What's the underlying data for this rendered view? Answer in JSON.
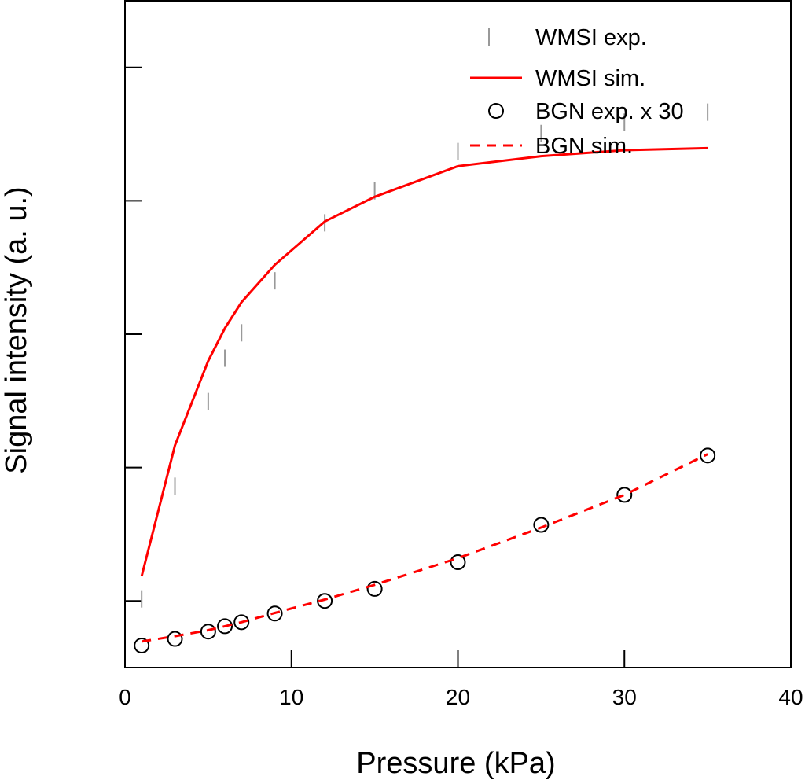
{
  "chart_data": {
    "type": "line",
    "title": "",
    "xlabel": "Pressure (kPa)",
    "ylabel": "Signal intensity (a. u.)",
    "xlim": [
      0,
      40
    ],
    "ylim": [
      0,
      1
    ],
    "x_ticks": [
      0,
      10,
      20,
      30,
      40
    ],
    "x_tick_labels": [
      "0",
      "10",
      "20",
      "30",
      "40"
    ],
    "y_ticks": [
      0.1,
      0.3,
      0.5,
      0.7,
      0.9
    ],
    "legend_position": "top-right",
    "grid": false,
    "colors": {
      "sim": "#ff0000",
      "bgn_exp": "#000000",
      "wmsi_exp": "#999999"
    },
    "series": [
      {
        "name": "WMSI exp.",
        "style": "vertical-tick",
        "x": [
          1,
          3,
          5,
          6,
          7,
          9,
          12,
          15,
          20,
          25,
          30,
          35
        ],
        "values": [
          0.103,
          0.272,
          0.399,
          0.464,
          0.502,
          0.58,
          0.667,
          0.715,
          0.774,
          0.801,
          0.818,
          0.833
        ]
      },
      {
        "name": "WMSI sim.",
        "style": "solid-line",
        "x": [
          1,
          3,
          5,
          6,
          7,
          9,
          12,
          15,
          20,
          25,
          30,
          35
        ],
        "values": [
          0.137,
          0.333,
          0.46,
          0.509,
          0.548,
          0.604,
          0.669,
          0.706,
          0.752,
          0.767,
          0.776,
          0.779
        ]
      },
      {
        "name": "BGN exp. x 30",
        "style": "open-circle",
        "x": [
          1,
          3,
          5,
          6,
          7,
          9,
          12,
          15,
          20,
          25,
          30,
          35
        ],
        "values": [
          0.033,
          0.043,
          0.054,
          0.062,
          0.068,
          0.081,
          0.1,
          0.118,
          0.158,
          0.214,
          0.259,
          0.318
        ]
      },
      {
        "name": "BGN sim.",
        "style": "dashed-line",
        "x": [
          1,
          3,
          5,
          6,
          7,
          9,
          12,
          15,
          20,
          25,
          30,
          35
        ],
        "values": [
          0.039,
          0.047,
          0.056,
          0.062,
          0.068,
          0.082,
          0.102,
          0.124,
          0.164,
          0.21,
          0.259,
          0.32
        ]
      }
    ]
  }
}
